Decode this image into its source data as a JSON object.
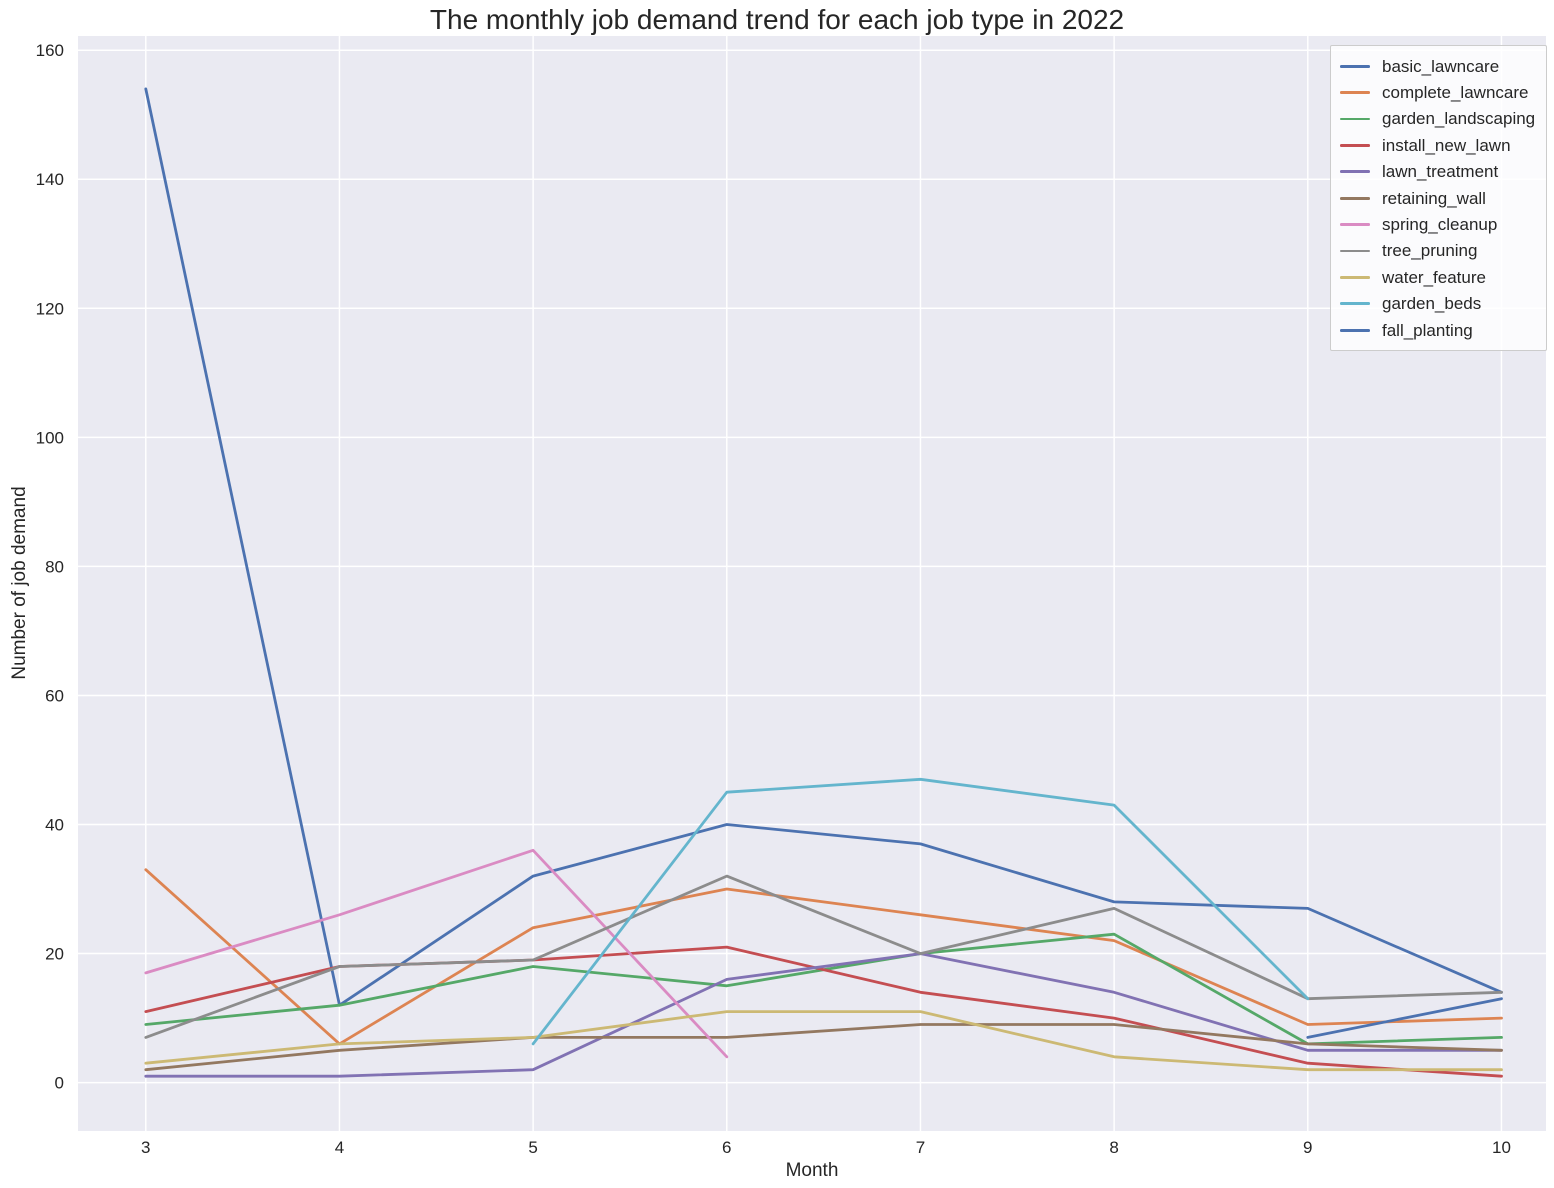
{
  "figure": {
    "title": "The monthly job demand trend for each job type in 2022",
    "xlabel": "Month",
    "ylabel": "Number of job demand"
  },
  "styles": {
    "panel_bg": "#EAEAF2",
    "grid_color": "#FFFFFF",
    "text_color": "#262626",
    "legend_bg": "rgba(255,255,255,0.8)",
    "legend_border": "#CCCCCC"
  },
  "chart_data": {
    "type": "line",
    "title": "The monthly job demand trend for each job type in 2022",
    "xlabel": "Month",
    "ylabel": "Number of job demand",
    "x_ticks": [
      3,
      4,
      5,
      6,
      7,
      8,
      9,
      10
    ],
    "y_ticks": [
      0,
      20,
      40,
      60,
      80,
      100,
      120,
      140,
      160
    ],
    "xlim": [
      2.65,
      10.23
    ],
    "ylim": [
      -7.5,
      162.2
    ],
    "grid": true,
    "legend_position": "upper right",
    "series": [
      {
        "name": "basic_lawncare",
        "color": "#4C72B0",
        "x": [
          3,
          4,
          5,
          6,
          7,
          8,
          9,
          10
        ],
        "y": [
          154,
          12,
          32,
          40,
          37,
          28,
          27,
          14
        ]
      },
      {
        "name": "complete_lawncare",
        "color": "#DD8452",
        "x": [
          3,
          4,
          5,
          6,
          7,
          8,
          9,
          10
        ],
        "y": [
          33,
          6,
          24,
          30,
          26,
          22,
          9,
          10
        ]
      },
      {
        "name": "garden_landscaping",
        "color": "#55A868",
        "x": [
          3,
          4,
          5,
          6,
          7,
          8,
          9,
          10
        ],
        "y": [
          9,
          12,
          18,
          15,
          20,
          23,
          6,
          7
        ]
      },
      {
        "name": "install_new_lawn",
        "color": "#C44E52",
        "x": [
          3,
          4,
          5,
          6,
          7,
          8,
          9,
          10
        ],
        "y": [
          11,
          18,
          19,
          21,
          14,
          10,
          3,
          1
        ]
      },
      {
        "name": "lawn_treatment",
        "color": "#8172B3",
        "x": [
          3,
          4,
          5,
          6,
          7,
          8,
          9,
          10
        ],
        "y": [
          1,
          1,
          2,
          16,
          20,
          14,
          5,
          5
        ]
      },
      {
        "name": "retaining_wall",
        "color": "#937860",
        "x": [
          3,
          4,
          5,
          6,
          7,
          8,
          9,
          10
        ],
        "y": [
          2,
          5,
          7,
          7,
          9,
          9,
          6,
          5
        ]
      },
      {
        "name": "spring_cleanup",
        "color": "#DA8BC3",
        "x": [
          3,
          4,
          5,
          6
        ],
        "y": [
          17,
          26,
          36,
          4
        ]
      },
      {
        "name": "tree_pruning",
        "color": "#8C8C8C",
        "x": [
          3,
          4,
          5,
          6,
          7,
          8,
          9,
          10
        ],
        "y": [
          7,
          18,
          19,
          32,
          20,
          27,
          13,
          14
        ]
      },
      {
        "name": "water_feature",
        "color": "#CCB974",
        "x": [
          3,
          4,
          5,
          6,
          7,
          8,
          9,
          10
        ],
        "y": [
          3,
          6,
          7,
          11,
          11,
          4,
          2,
          2
        ]
      },
      {
        "name": "garden_beds",
        "color": "#64B5CD",
        "x": [
          5,
          6,
          7,
          8,
          9
        ],
        "y": [
          6,
          45,
          47,
          43,
          13
        ]
      },
      {
        "name": "fall_planting",
        "color": "#4C72B0",
        "x": [
          9,
          10
        ],
        "y": [
          7,
          13
        ]
      }
    ]
  }
}
